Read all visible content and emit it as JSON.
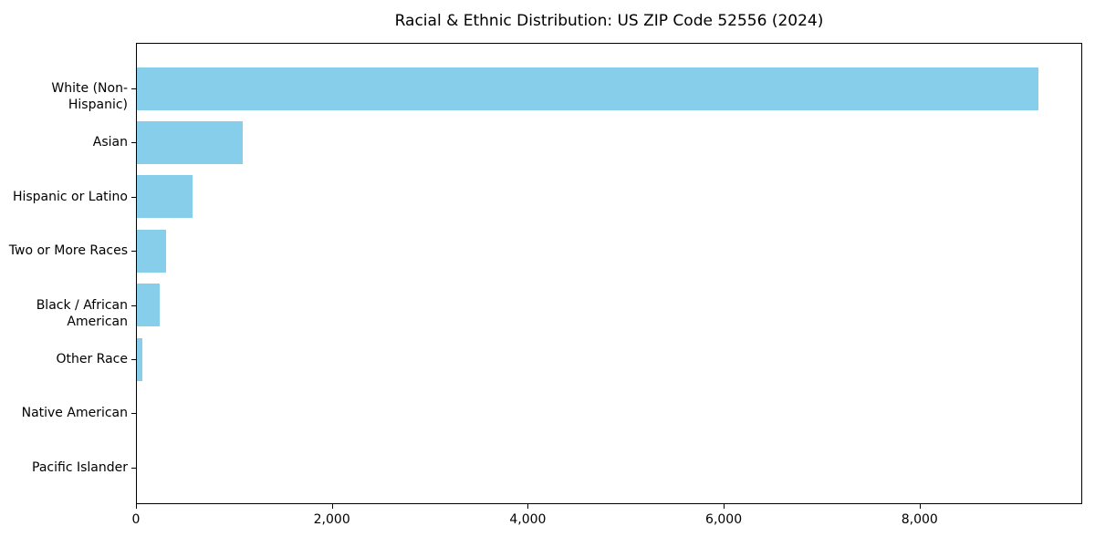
{
  "title": "Racial & Ethnic Distribution: US ZIP Code 52556 (2024)",
  "chart_data": {
    "type": "bar",
    "orientation": "horizontal",
    "title": "Racial & Ethnic Distribution: US ZIP Code 52556 (2024)",
    "xlabel": "",
    "ylabel": "",
    "categories": [
      "White (Non-Hispanic)",
      "Asian",
      "Hispanic or Latino",
      "Two or More Races",
      "Black / African American",
      "Other Race",
      "Native American",
      "Pacific Islander"
    ],
    "values": [
      9200,
      1080,
      570,
      300,
      230,
      55,
      0,
      0
    ],
    "xlim": [
      0,
      9660
    ],
    "x_ticks": [
      {
        "value": 0,
        "label": "0"
      },
      {
        "value": 2000,
        "label": "2,000"
      },
      {
        "value": 4000,
        "label": "4,000"
      },
      {
        "value": 6000,
        "label": "6,000"
      },
      {
        "value": 8000,
        "label": "8,000"
      }
    ],
    "bar_color": "#87CEEB",
    "axis_color": "#000000",
    "grid": false,
    "legend": false
  }
}
